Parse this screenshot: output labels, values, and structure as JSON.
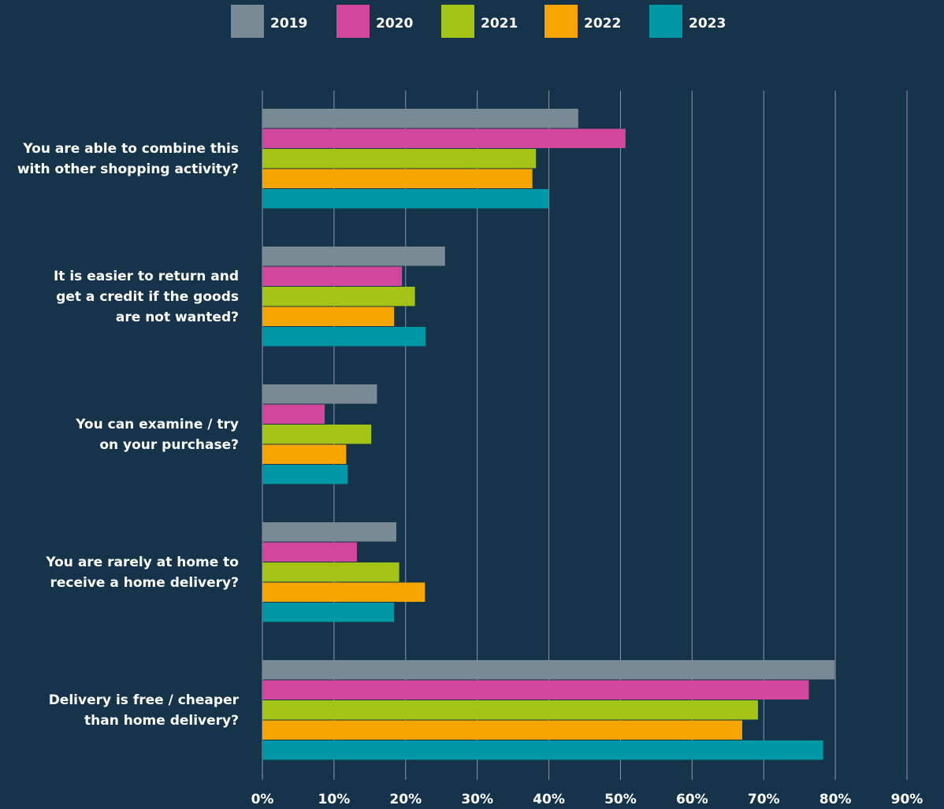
{
  "chart_data": {
    "type": "barh",
    "categories": [
      [
        "You are able to combine this",
        "with other shopping activity?"
      ],
      [
        "It is easier to return and",
        "get a credit if the goods",
        "are not wanted?"
      ],
      [
        "You can examine / try",
        "on your purchase?"
      ],
      [
        "You are rarely at home to",
        "receive a home delivery?"
      ],
      [
        "Delivery is free / cheaper",
        "than home delivery?"
      ]
    ],
    "series": [
      {
        "name": "2019",
        "color": "#7a8a95",
        "values": [
          44.1,
          25.5,
          16,
          18.7,
          79.9
        ]
      },
      {
        "name": "2020",
        "color": "#d0479b",
        "values": [
          50.7,
          19.5,
          8.7,
          13.2,
          76.3
        ]
      },
      {
        "name": "2021",
        "color": "#a3c317",
        "values": [
          38.2,
          21.3,
          15.2,
          19.1,
          69.2
        ]
      },
      {
        "name": "2022",
        "color": "#f6a500",
        "values": [
          37.7,
          18.4,
          11.7,
          22.7,
          67
        ]
      },
      {
        "name": "2023",
        "color": "#0097a6",
        "values": [
          40,
          22.8,
          11.9,
          18.4,
          78.3
        ]
      }
    ],
    "xlim": [
      0,
      90
    ],
    "xticks": [
      {
        "value": 0,
        "label": "0%"
      },
      {
        "value": 10,
        "label": "10%"
      },
      {
        "value": 20,
        "label": "20%"
      },
      {
        "value": 30,
        "label": "30%"
      },
      {
        "value": 40,
        "label": "40%"
      },
      {
        "value": 50,
        "label": "50%"
      },
      {
        "value": 60,
        "label": "60%"
      },
      {
        "value": 70,
        "label": "70%"
      },
      {
        "value": 80,
        "label": "80%"
      },
      {
        "value": 90,
        "label": "90%"
      }
    ],
    "grid": true,
    "legend": "top"
  }
}
